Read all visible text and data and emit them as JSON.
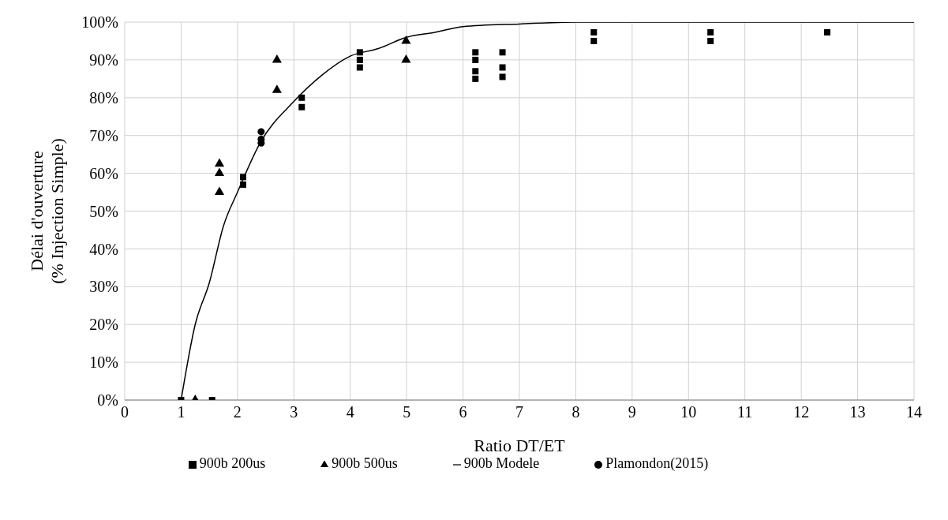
{
  "chart_data": {
    "type": "scatter",
    "xlabel": "Ratio DT/ET",
    "ylabel": "Délai d'ouverture (% Injection Simple)",
    "xlim": [
      0,
      14
    ],
    "xticks": [
      0,
      1,
      2,
      3,
      4,
      5,
      6,
      7,
      8,
      9,
      10,
      11,
      12,
      13,
      14
    ],
    "ylim": [
      0,
      100
    ],
    "yticks": [
      {
        "value": 0,
        "label": "0%"
      },
      {
        "value": 10,
        "label": "10%"
      },
      {
        "value": 20,
        "label": "20%"
      },
      {
        "value": 30,
        "label": "30%"
      },
      {
        "value": 40,
        "label": "40%"
      },
      {
        "value": 50,
        "label": "50%"
      },
      {
        "value": 60,
        "label": "60%"
      },
      {
        "value": 70,
        "label": "70%"
      },
      {
        "value": 80,
        "label": "80%"
      },
      {
        "value": 90,
        "label": "90%"
      },
      {
        "value": 100,
        "label": "100%"
      }
    ],
    "grid": true,
    "legend": "bottom",
    "series": [
      {
        "name": "900b Modele",
        "type": "line",
        "color": "#000000",
        "marker": "none",
        "line_style": "solid",
        "x": [
          1,
          1.25,
          1.5,
          1.75,
          2,
          2.4,
          3,
          3.5,
          4,
          4.5,
          5,
          5.5,
          6,
          7,
          8,
          10,
          12,
          14
        ],
        "values": [
          0,
          20,
          31,
          46,
          55,
          68,
          79,
          86,
          91,
          93,
          96,
          97.3,
          98.8,
          99.5,
          100,
          100,
          100,
          100
        ]
      },
      {
        "name": "900b 200us",
        "color": "#000000",
        "marker": "square",
        "x": [
          1,
          1.55,
          2.1,
          2.1,
          3.14,
          3.14,
          4.17,
          4.17,
          4.17,
          6.22,
          6.22,
          6.22,
          6.22,
          6.7,
          6.7,
          6.7,
          8.32,
          8.32,
          10.39,
          10.39,
          12.46
        ],
        "values": [
          0,
          0,
          59,
          57,
          80,
          77.5,
          92,
          90,
          88,
          92,
          90,
          87,
          85,
          92,
          88,
          85.5,
          97.3,
          95,
          97.3,
          95,
          97.3
        ]
      },
      {
        "name": "Plamondon(2015)",
        "color": "#000000",
        "marker": "circle",
        "x": [
          2.42,
          2.42,
          2.42
        ],
        "values": [
          71,
          69,
          68
        ]
      },
      {
        "name": "900b 500us",
        "color": "#000000",
        "marker": "triangle",
        "x": [
          1.25,
          1.68,
          1.68,
          1.68,
          2.7,
          2.7,
          4.99,
          4.99
        ],
        "values": [
          0,
          62.5,
          60,
          55,
          90,
          82,
          95,
          90
        ]
      }
    ]
  }
}
